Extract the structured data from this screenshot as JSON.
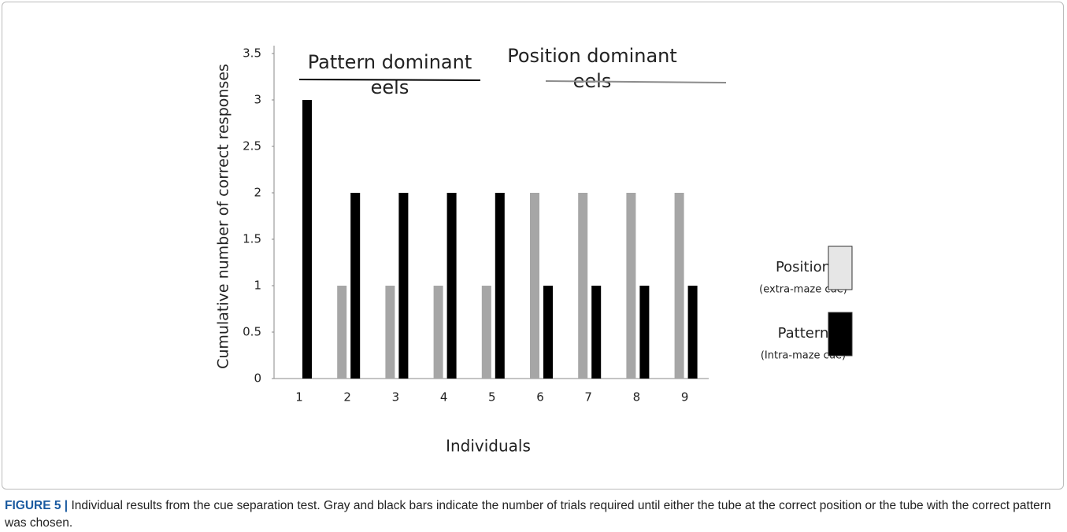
{
  "chart_data": {
    "type": "bar",
    "categories": [
      "1",
      "2",
      "3",
      "4",
      "5",
      "6",
      "7",
      "8",
      "9"
    ],
    "series": [
      {
        "name": "Position",
        "note": "(extra-maze cue)",
        "color": "#a6a6a6",
        "legend_color": "#e6e6e6",
        "values": [
          0,
          1,
          1,
          1,
          1,
          2,
          2,
          2,
          2
        ]
      },
      {
        "name": "Pattern",
        "note": "(Intra-maze cue)",
        "color": "#000000",
        "legend_color": "#000000",
        "values": [
          3,
          2,
          2,
          2,
          2,
          1,
          1,
          1,
          1
        ]
      }
    ],
    "xlabel": "Individuals",
    "ylabel": "Cumulative number of correct responses",
    "ylim": [
      0,
      3.5
    ],
    "yticks": [
      0,
      0.5,
      1,
      1.5,
      2,
      2.5,
      3,
      3.5
    ],
    "annotations": [
      {
        "lines": [
          "Pattern dominant",
          "eels"
        ],
        "color": "#000000"
      },
      {
        "lines": [
          "Position dominant",
          "eels"
        ],
        "color": "#8c8c8c"
      }
    ],
    "legend": "right"
  },
  "caption": {
    "label": "FIGURE 5 |",
    "text": "Individual results from the cue separation test. Gray and black bars indicate the number of trials required until either the tube at the correct position or the tube with the correct pattern was chosen."
  }
}
